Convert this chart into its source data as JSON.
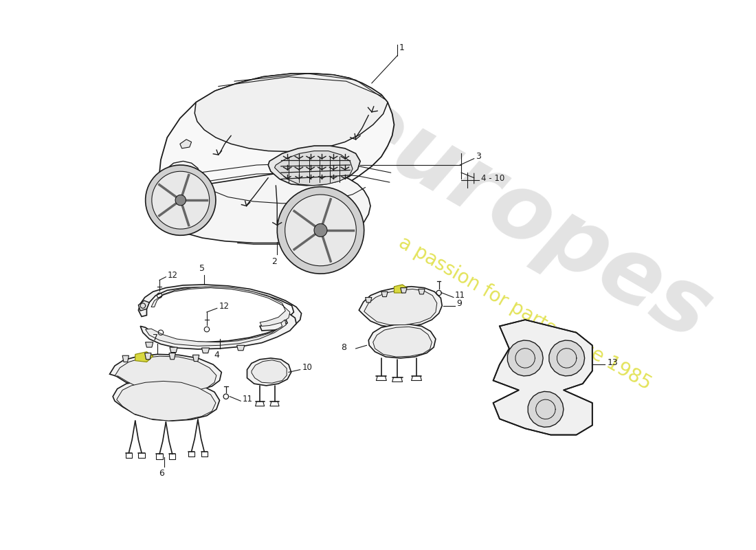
{
  "background_color": "#ffffff",
  "line_color": "#1a1a1a",
  "line_color_light": "#555555",
  "fig_width": 11.0,
  "fig_height": 8.0,
  "watermark_text": "europes",
  "watermark_subtext": "a passion for parts since 1985",
  "watermark_color": "#c8c8c8",
  "watermark_yellow": "#d4d400",
  "label_fontsize": 9
}
